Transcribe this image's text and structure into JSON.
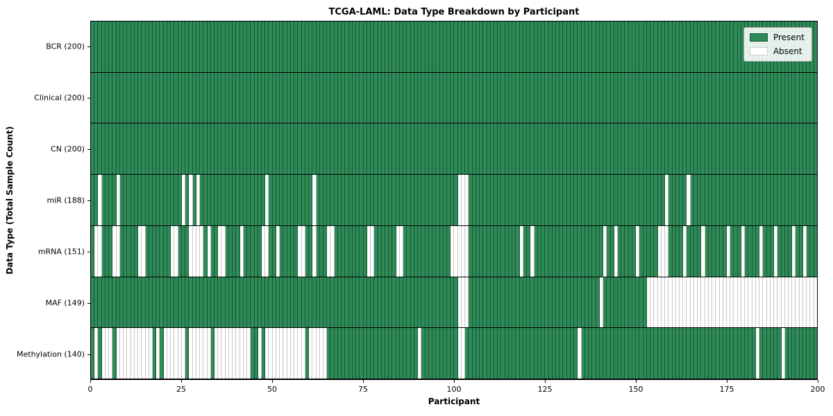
{
  "chart_data": {
    "type": "heatmap",
    "title": "TCGA-LAML: Data Type Breakdown by Participant",
    "xlabel": "Participant",
    "ylabel": "Data Type (Total Sample Count)",
    "x_range": [
      0,
      200
    ],
    "x_ticks": [
      0,
      25,
      50,
      75,
      100,
      125,
      150,
      175,
      200
    ],
    "n_participants": 200,
    "grid": false,
    "legend_position": "upper right",
    "colors": {
      "present": "#2e8b57",
      "absent": "#ffffff"
    },
    "legend": [
      {
        "label": "Present",
        "color": "#2e8b57"
      },
      {
        "label": "Absent",
        "color": "#ffffff"
      }
    ],
    "rows": [
      {
        "name": "BCR",
        "label": "BCR (200)",
        "total": 200,
        "absent": []
      },
      {
        "name": "Clinical",
        "label": "Clinical (200)",
        "total": 200,
        "absent": []
      },
      {
        "name": "CN",
        "label": "CN (200)",
        "total": 200,
        "absent": []
      },
      {
        "name": "miR",
        "label": "miR (188)",
        "total": 188,
        "absent": [
          2,
          7,
          25,
          27,
          29,
          48,
          61,
          101,
          102,
          103,
          158,
          164
        ]
      },
      {
        "name": "mRNA",
        "label": "mRNA (151)",
        "total": 151,
        "absent": [
          1,
          2,
          6,
          7,
          13,
          14,
          22,
          23,
          27,
          28,
          29,
          30,
          32,
          35,
          36,
          41,
          47,
          48,
          51,
          57,
          58,
          61,
          65,
          66,
          76,
          77,
          84,
          85,
          99,
          100,
          101,
          102,
          103,
          118,
          121,
          141,
          144,
          150,
          156,
          157,
          158,
          163,
          168,
          175,
          179,
          184,
          188,
          193,
          196
        ]
      },
      {
        "name": "MAF",
        "label": "MAF (149)",
        "total": 149,
        "absent": [
          101,
          102,
          103,
          140,
          153,
          154,
          155,
          156,
          157,
          158,
          159,
          160,
          161,
          162,
          163,
          164,
          165,
          166,
          167,
          168,
          169,
          170,
          171,
          172,
          173,
          174,
          175,
          176,
          177,
          178,
          179,
          180,
          181,
          182,
          183,
          184,
          185,
          186,
          187,
          188,
          189,
          190,
          191,
          192,
          193,
          194,
          195,
          196,
          197,
          198,
          199
        ]
      },
      {
        "name": "Methylation",
        "label": "Methylation (140)",
        "total": 140,
        "absent": [
          1,
          3,
          4,
          5,
          7,
          8,
          9,
          10,
          11,
          12,
          13,
          14,
          15,
          16,
          18,
          20,
          21,
          22,
          23,
          24,
          25,
          27,
          28,
          29,
          30,
          31,
          32,
          34,
          35,
          36,
          37,
          38,
          39,
          40,
          41,
          42,
          43,
          46,
          48,
          49,
          50,
          51,
          52,
          53,
          54,
          55,
          56,
          57,
          58,
          60,
          61,
          62,
          63,
          64,
          90,
          101,
          102,
          134,
          183,
          190
        ]
      }
    ]
  }
}
